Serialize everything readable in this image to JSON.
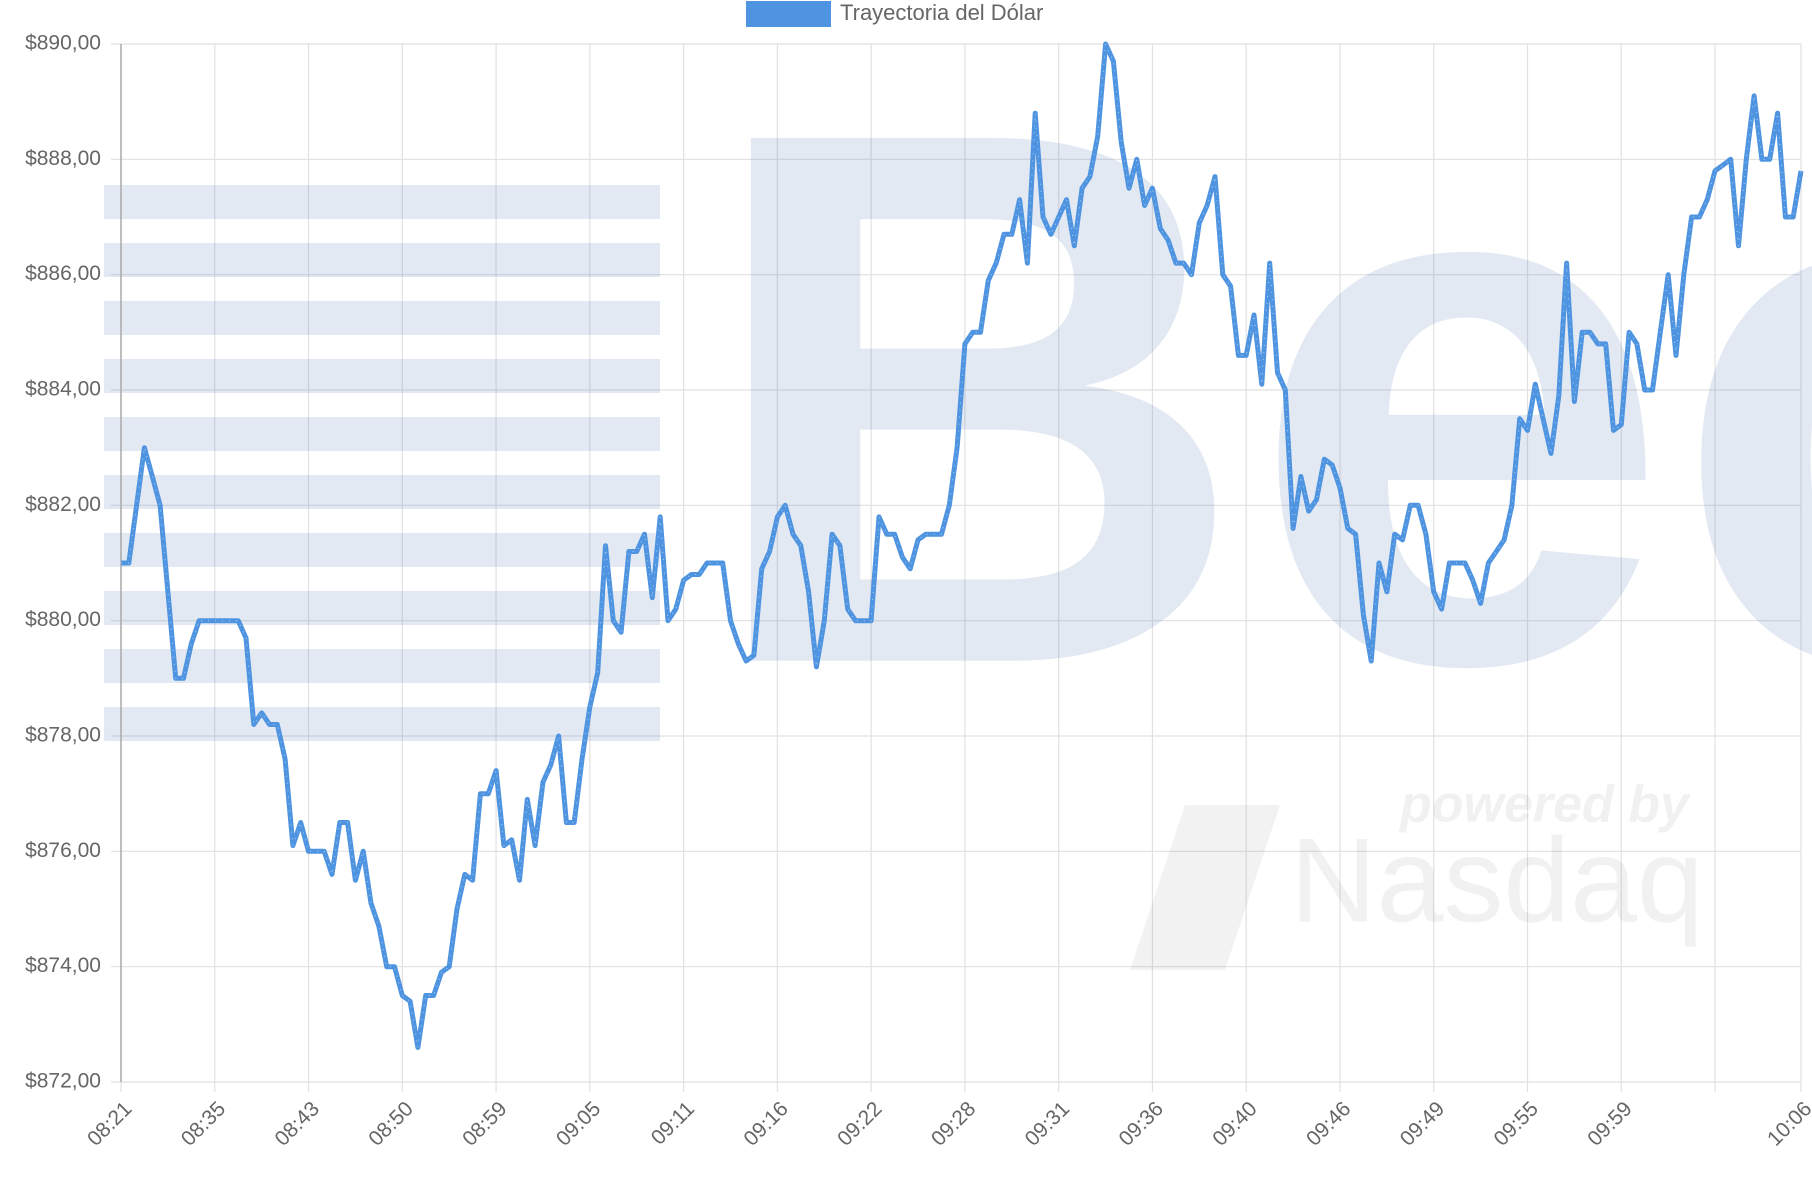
{
  "chart_data": {
    "type": "line",
    "legend": "top",
    "grid": true,
    "watermark": {
      "logo": "Bec",
      "powered": "powered by",
      "brand": "Nasdaq"
    },
    "categories": [
      "08:21",
      null,
      null,
      null,
      null,
      null,
      null,
      null,
      null,
      null,
      null,
      null,
      "08:35",
      null,
      null,
      null,
      null,
      null,
      null,
      null,
      null,
      null,
      null,
      null,
      "08:43",
      null,
      null,
      null,
      null,
      null,
      null,
      null,
      null,
      null,
      null,
      null,
      "08:50",
      null,
      null,
      null,
      null,
      null,
      null,
      null,
      null,
      null,
      null,
      null,
      "08:59",
      null,
      null,
      null,
      null,
      null,
      null,
      null,
      null,
      null,
      null,
      null,
      "09:05",
      null,
      null,
      null,
      null,
      null,
      null,
      null,
      null,
      null,
      null,
      null,
      "09:11",
      null,
      null,
      null,
      null,
      null,
      null,
      null,
      null,
      null,
      null,
      null,
      "09:16",
      null,
      null,
      null,
      null,
      null,
      null,
      null,
      null,
      null,
      null,
      null,
      "09:22",
      null,
      null,
      null,
      null,
      null,
      null,
      null,
      null,
      null,
      null,
      null,
      "09:28",
      null,
      null,
      null,
      null,
      null,
      null,
      null,
      null,
      null,
      null,
      null,
      "09:31",
      null,
      null,
      null,
      null,
      null,
      null,
      null,
      null,
      null,
      null,
      null,
      "09:36",
      null,
      null,
      null,
      null,
      null,
      null,
      null,
      null,
      null,
      null,
      null,
      "09:40",
      null,
      null,
      null,
      null,
      null,
      null,
      null,
      null,
      null,
      null,
      null,
      "09:46",
      null,
      null,
      null,
      null,
      null,
      null,
      null,
      null,
      null,
      null,
      null,
      "09:49",
      null,
      null,
      null,
      null,
      null,
      null,
      null,
      null,
      null,
      null,
      null,
      "09:55",
      null,
      null,
      null,
      null,
      null,
      null,
      null,
      null,
      null,
      null,
      null,
      "09:59",
      null,
      null,
      null,
      null,
      null,
      null,
      null,
      null,
      null,
      null,
      null,
      null,
      null,
      null,
      null,
      null,
      null,
      null,
      null,
      null,
      null,
      null,
      "10:06"
    ],
    "series": [
      {
        "name": "Trayectoria del Dólar",
        "color": "#4f94e0",
        "values": [
          881,
          881,
          882,
          883,
          882.5,
          882,
          880.5,
          879,
          879,
          879.6,
          880,
          880,
          880,
          880,
          880,
          880,
          879.7,
          878.2,
          878.4,
          878.2,
          878.2,
          877.6,
          876.1,
          876.5,
          876,
          876,
          876,
          875.6,
          876.5,
          876.5,
          875.5,
          876,
          875.1,
          874.7,
          874,
          874,
          873.5,
          873.4,
          872.6,
          873.5,
          873.5,
          873.9,
          874,
          875,
          875.6,
          875.5,
          877,
          877,
          877.4,
          876.1,
          876.2,
          875.5,
          876.9,
          876.1,
          877.2,
          877.5,
          878,
          876.5,
          876.5,
          877.6,
          878.5,
          879.1,
          881.3,
          880,
          879.8,
          881.2,
          881.2,
          881.5,
          880.4,
          881.8,
          880,
          880.2,
          880.7,
          880.8,
          880.8,
          881,
          881,
          881,
          880,
          879.6,
          879.3,
          879.4,
          880.9,
          881.2,
          881.8,
          882,
          881.5,
          881.3,
          880.5,
          879.2,
          880,
          881.5,
          881.3,
          880.2,
          880,
          880,
          880,
          881.8,
          881.5,
          881.5,
          881.1,
          880.9,
          881.4,
          881.5,
          881.5,
          881.5,
          882,
          883,
          884.8,
          885,
          885,
          885.9,
          886.2,
          886.7,
          886.7,
          887.3,
          886.2,
          888.8,
          887,
          886.7,
          887,
          887.3,
          886.5,
          887.5,
          887.7,
          888.4,
          890,
          889.7,
          888.3,
          887.5,
          888,
          887.2,
          887.5,
          886.8,
          886.6,
          886.2,
          886.2,
          886,
          886.9,
          887.2,
          887.7,
          886,
          885.8,
          884.6,
          884.6,
          885.3,
          884.1,
          886.2,
          884.3,
          884,
          881.6,
          882.5,
          881.9,
          882.1,
          882.8,
          882.7,
          882.3,
          881.6,
          881.5,
          880.1,
          879.3,
          881,
          880.5,
          881.5,
          881.4,
          882,
          882,
          881.5,
          880.5,
          880.2,
          881,
          881,
          881,
          880.7,
          880.3,
          881,
          881.2,
          881.4,
          882,
          883.5,
          883.3,
          884.1,
          883.5,
          882.9,
          883.9,
          886.2,
          883.8,
          885,
          885,
          884.8,
          884.8,
          883.3,
          883.4,
          885,
          884.8,
          884,
          884,
          885,
          886,
          884.6,
          886,
          887,
          887,
          887.3,
          887.8,
          887.9,
          888,
          886.5,
          888,
          889.1,
          888,
          888,
          888.8,
          887,
          887,
          887.8
        ]
      }
    ],
    "ylim": [
      872,
      890
    ],
    "yticks": [
      {
        "value": 872,
        "label": "$872,00"
      },
      {
        "value": 874,
        "label": "$874,00"
      },
      {
        "value": 876,
        "label": "$876,00"
      },
      {
        "value": 878,
        "label": "$878,00"
      },
      {
        "value": 880,
        "label": "$880,00"
      },
      {
        "value": 882,
        "label": "$882,00"
      },
      {
        "value": 884,
        "label": "$884,00"
      },
      {
        "value": 886,
        "label": "$886,00"
      },
      {
        "value": 888,
        "label": "$888,00"
      },
      {
        "value": 890,
        "label": "$890,00"
      }
    ]
  }
}
